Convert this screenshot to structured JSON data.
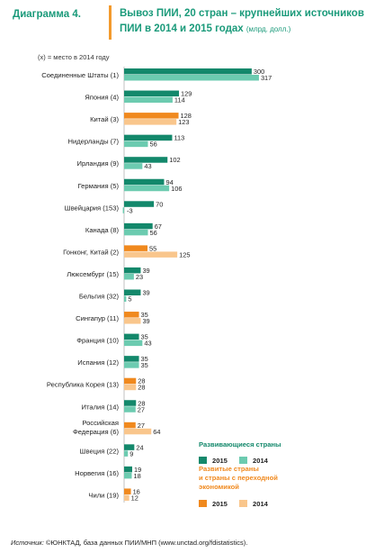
{
  "header": {
    "label": "Диаграмма 4.",
    "title": "Вывоз ПИИ, 20 стран – крупнейших источников ПИИ в 2014 и 2015 годах",
    "unit": "(млрд. долл.)"
  },
  "note": "(x) = место в 2014 году",
  "footer": {
    "source_label": "Источник:",
    "source_text": " ©ЮНКТАД, база данных ПИИ/МНП (www.unctad.org/fdistatistics)."
  },
  "colors": {
    "developing_2015": "#13886b",
    "developing_2014": "#6ccbb0",
    "developed_2015": "#f0891e",
    "developed_2014": "#f9c68c",
    "legend_developing_text": "#13886b",
    "legend_developed_text": "#f0891e"
  },
  "chart_data": {
    "type": "bar",
    "orientation": "horizontal",
    "categories": [
      "Соединенные Штаты (1)",
      "Япония (4)",
      "Китай (3)",
      "Нидерланды (7)",
      "Ирландия (9)",
      "Германия (5)",
      "Швейцария (153)",
      "Канада (8)",
      "Гонконг, Китай (2)",
      "Люксембург (15)",
      "Бельгия (32)",
      "Сингапур (11)",
      "Франция (10)",
      "Испания (12)",
      "Республика Корея (13)",
      "Италия (14)",
      "Российская Федерация (6)",
      "Швеция (22)",
      "Норвегия (16)",
      "Чили (19)"
    ],
    "category_lines": [
      [
        "Соединенные Штаты  (1)"
      ],
      [
        "Япония  (4)"
      ],
      [
        "Китай  (3)"
      ],
      [
        "Нидерланды  (7)"
      ],
      [
        "Ирландия  (9)"
      ],
      [
        "Германия  (5)"
      ],
      [
        "Швейцария  (153)"
      ],
      [
        "Канада  (8)"
      ],
      [
        "Гонконг, Китай  (2)"
      ],
      [
        "Люксембург  (15)"
      ],
      [
        "Бельгия  (32)"
      ],
      [
        "Сингапур  (11)"
      ],
      [
        "Франция  (10)"
      ],
      [
        "Испания  (12)"
      ],
      [
        "Республика Корея  (13)"
      ],
      [
        "Италия  (14)"
      ],
      [
        "Российская",
        "Федерация  (6)"
      ],
      [
        "Швеция  (22)"
      ],
      [
        "Норвегия  (16)"
      ],
      [
        "Чили  (19)"
      ]
    ],
    "group": [
      "developed",
      "developed",
      "developing",
      "developed",
      "developed",
      "developed",
      "developed",
      "developed",
      "developing",
      "developed",
      "developed",
      "developing",
      "developed",
      "developed",
      "developing",
      "developed",
      "developing",
      "developed",
      "developed",
      "developing"
    ],
    "series": [
      {
        "name": "2015",
        "values": [
          300,
          129,
          128,
          113,
          102,
          94,
          70,
          67,
          55,
          39,
          39,
          35,
          35,
          35,
          28,
          28,
          27,
          24,
          19,
          16
        ]
      },
      {
        "name": "2014",
        "values": [
          317,
          114,
          123,
          56,
          43,
          106,
          -3,
          56,
          125,
          23,
          5,
          39,
          43,
          35,
          28,
          27,
          64,
          9,
          18,
          12
        ]
      }
    ],
    "legend": {
      "placement": "bottom-right",
      "groups": [
        {
          "key": "developing",
          "title_lines": [
            "Развивающиеся страны"
          ],
          "labels": [
            "2015",
            "2014"
          ]
        },
        {
          "key": "developed",
          "title_lines": [
            "Развитые страны",
            "и страны с переходной",
            "экономикой"
          ],
          "labels": [
            "2015",
            "2014"
          ]
        }
      ]
    }
  }
}
